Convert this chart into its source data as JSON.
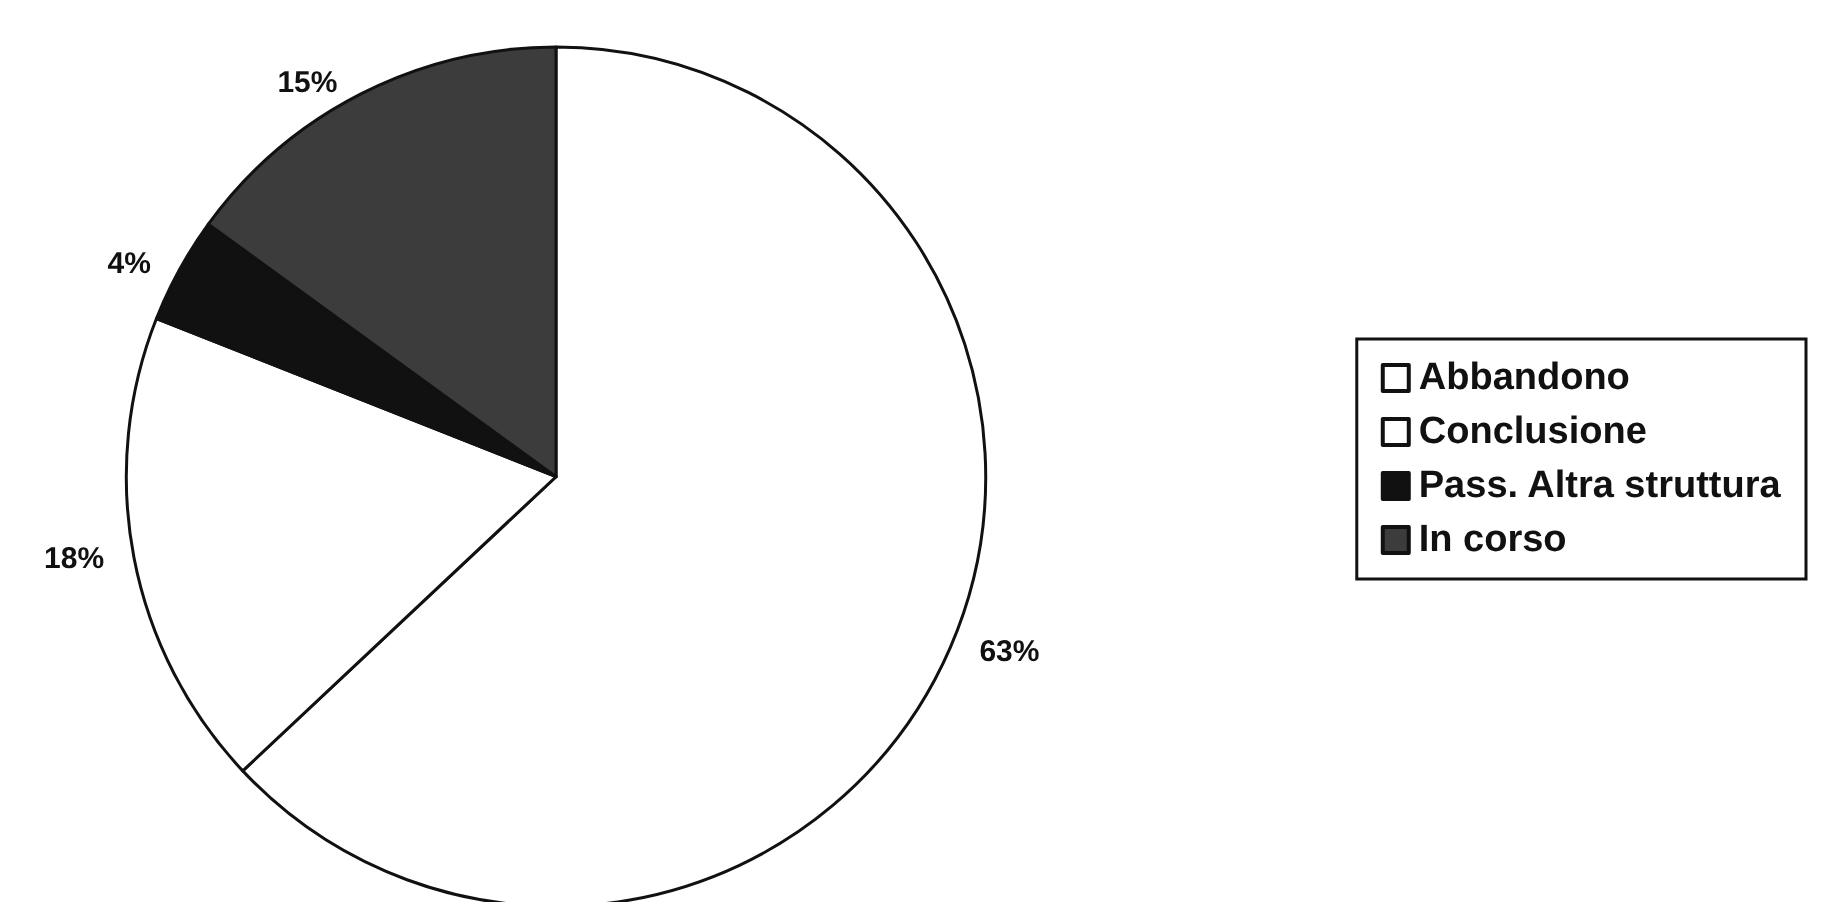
{
  "chart_data": {
    "type": "pie",
    "categories": [
      "Abbandono",
      "Conclusione",
      "Pass. Altra struttura",
      "In corso"
    ],
    "values": [
      63,
      18,
      4,
      15
    ],
    "value_labels": [
      "63%",
      "18%",
      "4%",
      "15%"
    ],
    "colors": [
      "#ffffff",
      "#ffffff",
      "#111111",
      "#3c3c3c"
    ],
    "legend": "right"
  }
}
